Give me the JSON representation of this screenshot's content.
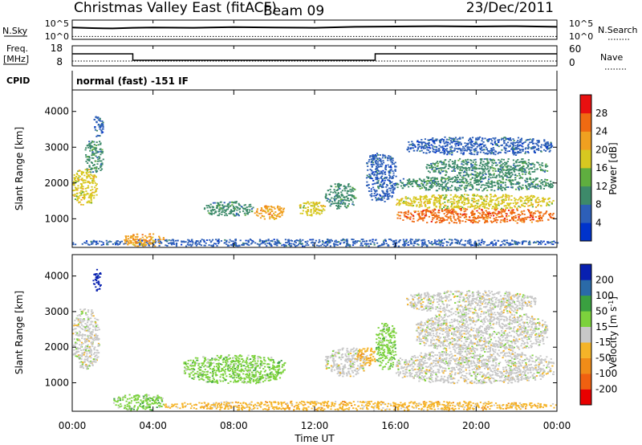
{
  "header": {
    "title": "Christmas Valley East (fitACF)",
    "beam": "Beam 09",
    "date": "23/Dec/2011"
  },
  "nsky_panel": {
    "left_label": "N.Sky",
    "left_ticks": [
      "10^5",
      "10^0"
    ],
    "right_label": "N.Search",
    "right_ticks": [
      "10^5",
      "10^0"
    ]
  },
  "freq_panel": {
    "left_label_top": "Freq.",
    "left_label_bottom": "[MHz]",
    "left_ticks": [
      "18",
      "8"
    ],
    "right_label": "Nave",
    "right_ticks": [
      "60",
      "0"
    ]
  },
  "cpid_panel": {
    "label": "CPID",
    "text": "normal (fast) -151 IF"
  },
  "time_axis": {
    "label": "Time UT",
    "ticks": [
      "00:00",
      "04:00",
      "08:00",
      "12:00",
      "16:00",
      "20:00",
      "00:00"
    ]
  },
  "chart_data": [
    {
      "type": "line",
      "name": "nsky",
      "x": [
        0,
        1,
        2,
        3,
        4,
        6,
        8,
        10,
        12,
        14,
        16,
        18,
        20,
        22,
        24
      ],
      "series": [
        {
          "name": "N.Sky",
          "values": [
            3.2,
            3.0,
            2.9,
            3.1,
            3.2,
            3.1,
            3.3,
            3.2,
            3.1,
            3.4,
            3.5,
            3.6,
            3.5,
            3.6,
            3.4
          ]
        },
        {
          "name": "N.Search",
          "values": [
            0.4,
            0.4,
            0.4,
            0.4,
            0.4,
            0.4,
            0.4,
            0.4,
            0.4,
            0.4,
            0.4,
            0.4,
            0.4,
            0.4,
            0.4
          ]
        }
      ]
    },
    {
      "type": "line",
      "name": "freq",
      "series": [
        {
          "name": "Freq",
          "x": [
            0,
            3.0,
            3.0,
            15.0,
            15.0,
            24
          ],
          "values": [
            14.5,
            14.5,
            10.5,
            10.5,
            14.5,
            14.5
          ]
        },
        {
          "name": "Nave",
          "x": [
            0,
            24
          ],
          "values": [
            10,
            10
          ]
        }
      ]
    },
    {
      "type": "heatmap",
      "name": "power",
      "ylabel": "Slant Range [km]",
      "ylim": [
        200,
        4600
      ],
      "xlim": [
        0,
        24
      ],
      "yticks": [
        1000,
        2000,
        3000,
        4000
      ],
      "colorbar": {
        "label": "Power [dB]",
        "ticks": [
          4,
          8,
          12,
          16,
          20,
          24,
          28
        ],
        "colors": [
          "#0033cc",
          "#2d5fb8",
          "#3d8a6a",
          "#5fae3f",
          "#d7c820",
          "#f0a020",
          "#ef6a12",
          "#e81010"
        ]
      },
      "regions": [
        {
          "x0": 0.0,
          "x1": 1.2,
          "y0": 1400,
          "y1": 2400,
          "val": 18
        },
        {
          "x0": 0.6,
          "x1": 1.5,
          "y0": 2300,
          "y1": 3200,
          "val": 10
        },
        {
          "x0": 1.0,
          "x1": 1.5,
          "y0": 3300,
          "y1": 3900,
          "val": 8
        },
        {
          "x0": 6.5,
          "x1": 9.0,
          "y0": 1100,
          "y1": 1500,
          "val": 9
        },
        {
          "x0": 9.0,
          "x1": 10.5,
          "y0": 1000,
          "y1": 1400,
          "val": 22
        },
        {
          "x0": 11.2,
          "x1": 12.5,
          "y0": 1100,
          "y1": 1500,
          "val": 18
        },
        {
          "x0": 12.5,
          "x1": 14.0,
          "y0": 1300,
          "y1": 2000,
          "val": 10
        },
        {
          "x0": 14.5,
          "x1": 16.0,
          "y0": 1500,
          "y1": 2900,
          "val": 8
        },
        {
          "x0": 16.0,
          "x1": 23.8,
          "y0": 900,
          "y1": 1300,
          "val": 28
        },
        {
          "x0": 16.0,
          "x1": 23.8,
          "y0": 1300,
          "y1": 1700,
          "val": 18
        },
        {
          "x0": 16.0,
          "x1": 23.8,
          "y0": 1800,
          "y1": 2200,
          "val": 10
        },
        {
          "x0": 17.5,
          "x1": 23.5,
          "y0": 2200,
          "y1": 2700,
          "val": 9
        },
        {
          "x0": 16.5,
          "x1": 23.8,
          "y0": 2800,
          "y1": 3300,
          "val": 6
        },
        {
          "x0": 0.0,
          "x1": 24.0,
          "y0": 250,
          "y1": 450,
          "val": 8
        },
        {
          "x0": 2.5,
          "x1": 4.5,
          "y0": 250,
          "y1": 600,
          "val": 22
        }
      ]
    },
    {
      "type": "heatmap",
      "name": "velocity",
      "ylabel": "Slant Range [km]",
      "ylim": [
        200,
        4600
      ],
      "xlim": [
        0,
        24
      ],
      "yticks": [
        1000,
        2000,
        3000,
        4000
      ],
      "colorbar": {
        "label": "Velocity [m s",
        "label_sup": "-1",
        "label_end": "]",
        "ticks": [
          -200,
          -100,
          -50,
          -15,
          15,
          50,
          100,
          200
        ],
        "colors": [
          "#e80000",
          "#f06010",
          "#f08c18",
          "#f5b428",
          "#c8c8c8",
          "#7cd23c",
          "#3aa040",
          "#2a6aa8",
          "#0820b0"
        ]
      },
      "regions": [
        {
          "x0": 0.0,
          "x1": 1.3,
          "y0": 1400,
          "y1": 3100,
          "val": 0
        },
        {
          "x0": 1.0,
          "x1": 1.4,
          "y0": 3600,
          "y1": 4200,
          "val": 250
        },
        {
          "x0": 5.5,
          "x1": 10.5,
          "y0": 1000,
          "y1": 1800,
          "val": 30
        },
        {
          "x0": 12.5,
          "x1": 14.5,
          "y0": 1200,
          "y1": 2000,
          "val": 0
        },
        {
          "x0": 14.0,
          "x1": 15.0,
          "y0": 1500,
          "y1": 2000,
          "val": -40
        },
        {
          "x0": 15.0,
          "x1": 16.0,
          "y0": 1400,
          "y1": 2700,
          "val": 30
        },
        {
          "x0": 16.0,
          "x1": 23.8,
          "y0": 1000,
          "y1": 1900,
          "val": 0
        },
        {
          "x0": 17.0,
          "x1": 23.5,
          "y0": 1900,
          "y1": 3000,
          "val": 0
        },
        {
          "x0": 16.5,
          "x1": 23.0,
          "y0": 3000,
          "y1": 3600,
          "val": 0
        },
        {
          "x0": 2.0,
          "x1": 4.5,
          "y0": 250,
          "y1": 700,
          "val": 30
        },
        {
          "x0": 4.5,
          "x1": 24.0,
          "y0": 250,
          "y1": 500,
          "val": -40
        }
      ]
    }
  ]
}
